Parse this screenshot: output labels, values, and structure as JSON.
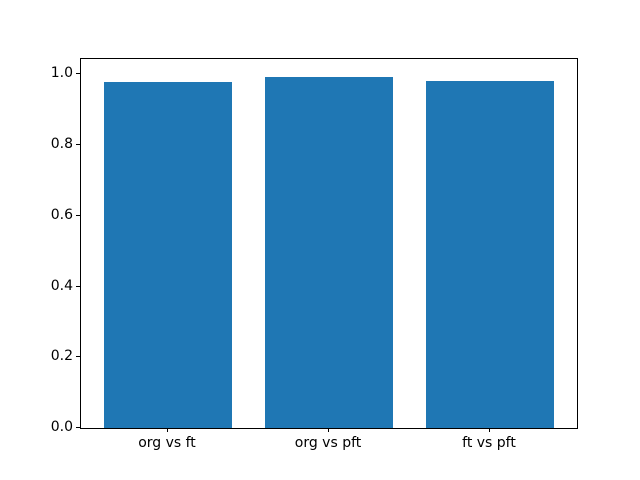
{
  "chart_data": {
    "type": "bar",
    "title": "",
    "xlabel": "",
    "ylabel": "",
    "categories": [
      "org vs ft",
      "org vs pft",
      "ft vs pft"
    ],
    "x": [
      0,
      1,
      2
    ],
    "values": [
      0.977,
      0.993,
      0.981
    ],
    "bar_width": 0.8,
    "bar_color": "#1f77b4",
    "xlim": [
      -0.54,
      2.54
    ],
    "ylim": [
      0,
      1.043
    ],
    "yticks": [
      0.0,
      0.2,
      0.4,
      0.6,
      0.8,
      1.0
    ],
    "ytick_labels": [
      "0.0",
      "0.2",
      "0.4",
      "0.6",
      "0.8",
      "1.0"
    ],
    "grid": false,
    "legend": null,
    "background": "#ffffff",
    "spine_color": "#000000"
  }
}
